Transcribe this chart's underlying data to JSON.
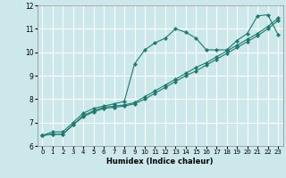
{
  "xlabel": "Humidex (Indice chaleur)",
  "bg_color": "#cce8ea",
  "grid_color": "#ffffff",
  "line_color": "#1a7a6e",
  "xlim": [
    -0.5,
    23.5
  ],
  "ylim": [
    6,
    12
  ],
  "xticks": [
    0,
    1,
    2,
    3,
    4,
    5,
    6,
    7,
    8,
    9,
    10,
    11,
    12,
    13,
    14,
    15,
    16,
    17,
    18,
    19,
    20,
    21,
    22,
    23
  ],
  "yticks": [
    6,
    7,
    8,
    9,
    10,
    11,
    12
  ],
  "series1_x": [
    0,
    1,
    2,
    3,
    4,
    5,
    6,
    7,
    8,
    9,
    10,
    11,
    12,
    13,
    14,
    15,
    16,
    17,
    18,
    19,
    20,
    21,
    22,
    23
  ],
  "series1_y": [
    6.45,
    6.6,
    6.6,
    7.0,
    7.4,
    7.6,
    7.7,
    7.8,
    7.9,
    9.5,
    10.1,
    10.4,
    10.6,
    11.0,
    10.85,
    10.6,
    10.1,
    10.1,
    10.1,
    10.5,
    10.8,
    11.55,
    11.6,
    10.75
  ],
  "series2_x": [
    0,
    1,
    2,
    3,
    4,
    5,
    6,
    7,
    8,
    9,
    10,
    11,
    12,
    13,
    14,
    15,
    16,
    17,
    18,
    19,
    20,
    21,
    22,
    23
  ],
  "series2_y": [
    6.45,
    6.5,
    6.5,
    6.9,
    7.3,
    7.5,
    7.65,
    7.7,
    7.75,
    7.85,
    8.1,
    8.35,
    8.6,
    8.85,
    9.1,
    9.35,
    9.55,
    9.8,
    10.05,
    10.3,
    10.55,
    10.8,
    11.1,
    11.45
  ],
  "series3_x": [
    0,
    1,
    2,
    3,
    4,
    5,
    6,
    7,
    8,
    9,
    10,
    11,
    12,
    13,
    14,
    15,
    16,
    17,
    18,
    19,
    20,
    21,
    22,
    23
  ],
  "series3_y": [
    6.45,
    6.5,
    6.5,
    6.9,
    7.25,
    7.45,
    7.6,
    7.65,
    7.7,
    7.8,
    8.0,
    8.25,
    8.5,
    8.75,
    9.0,
    9.2,
    9.45,
    9.7,
    9.95,
    10.2,
    10.45,
    10.7,
    11.0,
    11.35
  ]
}
